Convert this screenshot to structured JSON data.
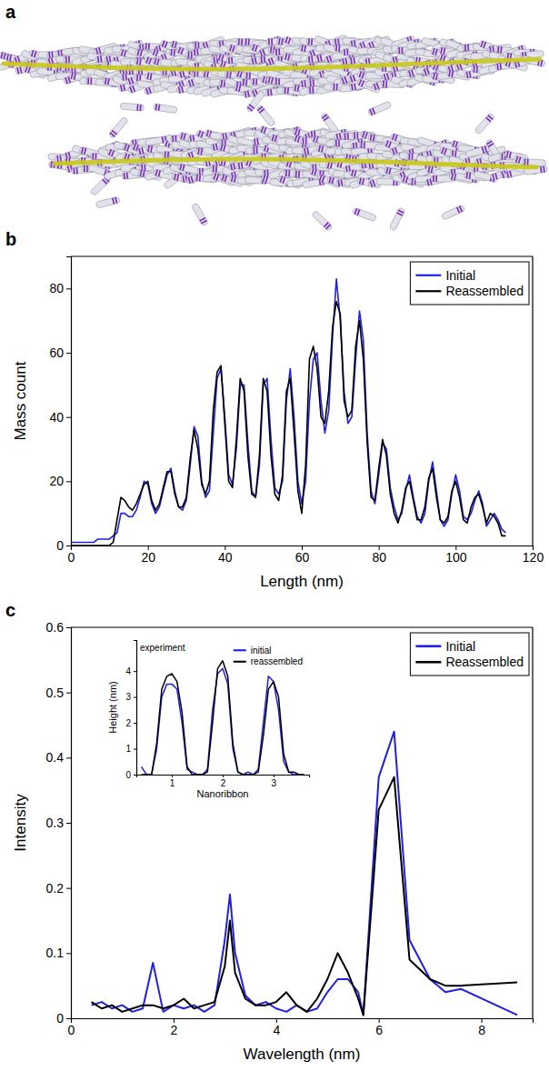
{
  "chart_data": [
    {
      "type": "illustration",
      "panel": "a"
    },
    {
      "type": "line",
      "panel": "b",
      "x_label": "Length (nm)",
      "y_label": "Mass count",
      "x": [
        0,
        1,
        2,
        3,
        4,
        5,
        6,
        7,
        8,
        9,
        10,
        11,
        12,
        13,
        14,
        15,
        16,
        17,
        18,
        19,
        20,
        21,
        22,
        23,
        24,
        25,
        26,
        27,
        28,
        29,
        30,
        31,
        32,
        33,
        34,
        35,
        36,
        37,
        38,
        39,
        40,
        41,
        42,
        43,
        44,
        45,
        46,
        47,
        48,
        49,
        50,
        51,
        52,
        53,
        54,
        55,
        56,
        57,
        58,
        59,
        60,
        61,
        62,
        63,
        64,
        65,
        66,
        67,
        68,
        69,
        70,
        71,
        72,
        73,
        74,
        75,
        76,
        77,
        78,
        79,
        80,
        81,
        82,
        83,
        84,
        85,
        86,
        87,
        88,
        89,
        90,
        91,
        92,
        93,
        94,
        95,
        96,
        97,
        98,
        99,
        100,
        101,
        102,
        103,
        104,
        105,
        106,
        107,
        108,
        109,
        110,
        111,
        112,
        113
      ],
      "series": [
        {
          "name": "Initial",
          "color": "#1f1fe6",
          "values": [
            1,
            1,
            1,
            1,
            1,
            1,
            1,
            2,
            2,
            2,
            2,
            3,
            4,
            10,
            10,
            9,
            9,
            11,
            15,
            20,
            19,
            13,
            10,
            12,
            17,
            22,
            24,
            17,
            12,
            11,
            14,
            25,
            37,
            34,
            20,
            15,
            17,
            35,
            52,
            55,
            40,
            22,
            19,
            30,
            50,
            50,
            32,
            17,
            15,
            25,
            50,
            52,
            33,
            18,
            16,
            20,
            45,
            55,
            40,
            20,
            13,
            20,
            45,
            58,
            60,
            45,
            35,
            42,
            65,
            83,
            70,
            48,
            38,
            40,
            58,
            73,
            64,
            35,
            17,
            13,
            22,
            32,
            30,
            18,
            12,
            8,
            10,
            17,
            22,
            15,
            9,
            7,
            10,
            20,
            26,
            17,
            8,
            6,
            8,
            16,
            22,
            17,
            9,
            8,
            10,
            14,
            17,
            13,
            6,
            8,
            10,
            8,
            5,
            4
          ]
        },
        {
          "name": "Reassembled",
          "color": "#000000",
          "values": [
            0,
            0,
            0,
            0,
            0,
            0,
            0,
            0,
            0,
            0,
            0,
            1,
            8,
            15,
            14,
            12,
            11,
            13,
            16,
            19,
            20,
            14,
            11,
            13,
            18,
            23,
            23,
            16,
            12,
            12,
            15,
            27,
            36,
            30,
            19,
            16,
            20,
            42,
            54,
            56,
            38,
            20,
            18,
            33,
            52,
            48,
            28,
            16,
            15,
            28,
            52,
            48,
            28,
            16,
            14,
            22,
            48,
            52,
            35,
            17,
            10,
            25,
            58,
            62,
            55,
            40,
            38,
            48,
            68,
            76,
            72,
            45,
            40,
            42,
            62,
            70,
            58,
            32,
            15,
            14,
            24,
            33,
            28,
            16,
            10,
            7,
            11,
            18,
            20,
            14,
            8,
            8,
            12,
            21,
            24,
            15,
            8,
            7,
            9,
            17,
            20,
            15,
            8,
            7,
            12,
            15,
            16,
            12,
            7,
            10,
            9,
            7,
            3,
            3
          ]
        }
      ],
      "xlim": [
        0,
        120
      ],
      "xticks": [
        0,
        20,
        40,
        60,
        80,
        100,
        120
      ],
      "ylim": [
        0,
        90
      ],
      "yticks": [
        0,
        20,
        40,
        60,
        80
      ],
      "legend": "upper right"
    },
    {
      "type": "line",
      "panel": "c",
      "x_label": "Wavelength (nm)",
      "y_label": "Intensity",
      "x": [
        0.4,
        0.6,
        0.8,
        1.0,
        1.2,
        1.4,
        1.6,
        1.8,
        2.0,
        2.2,
        2.4,
        2.6,
        2.8,
        3.0,
        3.1,
        3.2,
        3.4,
        3.6,
        3.8,
        4.0,
        4.2,
        4.4,
        4.6,
        4.8,
        5.0,
        5.2,
        5.4,
        5.6,
        5.7,
        6.0,
        6.3,
        6.6,
        7.0,
        7.3,
        7.6,
        8.7
      ],
      "series": [
        {
          "name": "Initial",
          "color": "#1f1fe6",
          "values": [
            0.02,
            0.025,
            0.015,
            0.02,
            0.01,
            0.015,
            0.085,
            0.01,
            0.02,
            0.015,
            0.02,
            0.01,
            0.02,
            0.12,
            0.19,
            0.1,
            0.035,
            0.02,
            0.025,
            0.015,
            0.01,
            0.02,
            0.01,
            0.015,
            0.04,
            0.06,
            0.06,
            0.04,
            0.005,
            0.37,
            0.44,
            0.12,
            0.06,
            0.04,
            0.045,
            0.005
          ]
        },
        {
          "name": "Reassembled",
          "color": "#000000",
          "values": [
            0.025,
            0.015,
            0.02,
            0.01,
            0.015,
            0.02,
            0.02,
            0.015,
            0.02,
            0.03,
            0.015,
            0.02,
            0.025,
            0.08,
            0.15,
            0.07,
            0.03,
            0.02,
            0.02,
            0.025,
            0.04,
            0.02,
            0.01,
            0.03,
            0.06,
            0.1,
            0.07,
            0.03,
            0.005,
            0.32,
            0.37,
            0.09,
            0.06,
            0.05,
            0.05,
            0.055
          ]
        }
      ],
      "xlim": [
        0,
        9
      ],
      "xticks": [
        0,
        2,
        4,
        6,
        8
      ],
      "ylim": [
        0,
        0.6
      ],
      "yticks": [
        0,
        0.1,
        0.2,
        0.3,
        0.4,
        0.5,
        0.6
      ],
      "legend": "upper right"
    },
    {
      "type": "line",
      "annotation": "experiment",
      "x_label": "Nanoribbon",
      "y_label": "Height (nm)",
      "x": [
        0.4,
        0.5,
        0.6,
        0.7,
        0.8,
        0.9,
        1.0,
        1.1,
        1.2,
        1.3,
        1.4,
        1.5,
        1.6,
        1.7,
        1.8,
        1.9,
        2.0,
        2.1,
        2.2,
        2.3,
        2.4,
        2.5,
        2.6,
        2.7,
        2.8,
        2.9,
        3.0,
        3.1,
        3.2,
        3.3,
        3.4,
        3.5,
        3.6
      ],
      "series": [
        {
          "name": "initial",
          "color": "#1f1fe6",
          "values": [
            0.3,
            0,
            0,
            1.0,
            3.0,
            3.5,
            3.5,
            3.3,
            2.0,
            0.2,
            0.1,
            0,
            0,
            0.2,
            2.5,
            3.9,
            4.1,
            3.5,
            1.0,
            0.1,
            0,
            0.1,
            0,
            0.2,
            2.0,
            3.8,
            3.6,
            2.5,
            0.5,
            0.1,
            0,
            0,
            0
          ]
        },
        {
          "name": "reassembled",
          "color": "#000000",
          "values": [
            0,
            0,
            0,
            1.2,
            3.3,
            3.8,
            3.9,
            3.6,
            2.4,
            0.3,
            0,
            0,
            0,
            0.1,
            2.0,
            4.1,
            4.4,
            3.8,
            1.2,
            0.1,
            0,
            0,
            0,
            0.1,
            1.5,
            3.3,
            3.6,
            3.0,
            0.8,
            0.1,
            0.1,
            0,
            0
          ]
        }
      ],
      "xlim": [
        0.3,
        3.7
      ],
      "xticks": [
        1,
        2,
        3
      ],
      "ylim": [
        0,
        5.2
      ],
      "yticks": [
        0,
        1,
        2,
        3,
        4
      ],
      "legend": "upper right"
    }
  ]
}
